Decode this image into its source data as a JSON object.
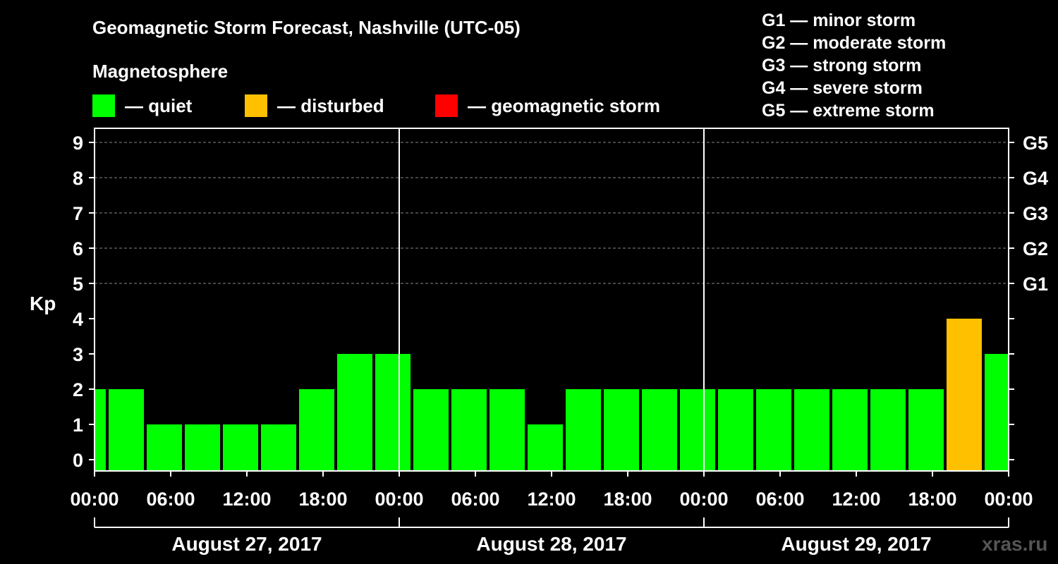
{
  "title": "Geomagnetic Storm Forecast, Nashville (UTC-05)",
  "section_label": "Magnetosphere",
  "legend": [
    {
      "label": "— quiet",
      "color": "#00ff00"
    },
    {
      "label": "— disturbed",
      "color": "#ffc000"
    },
    {
      "label": "— geomagnetic storm",
      "color": "#ff0000"
    }
  ],
  "g_scale": [
    "G1 — minor storm",
    "G2 — moderate storm",
    "G3 — strong storm",
    "G4 — severe storm",
    "G5 — extreme storm"
  ],
  "watermark": "xras.ru",
  "chart_data": {
    "type": "bar",
    "ylabel": "Kp",
    "ylim": [
      0,
      9
    ],
    "y_ticks": [
      "0",
      "1",
      "2",
      "3",
      "4",
      "5",
      "6",
      "7",
      "8",
      "9"
    ],
    "right_ticks": [
      {
        "kp": 5,
        "label": "G1"
      },
      {
        "kp": 6,
        "label": "G2"
      },
      {
        "kp": 7,
        "label": "G3"
      },
      {
        "kp": 8,
        "label": "G4"
      },
      {
        "kp": 9,
        "label": "G5"
      }
    ],
    "x_start": "2017-08-27 00:00",
    "x_end": "2017-08-30 00:00",
    "x_tick_labels": [
      "00:00",
      "06:00",
      "12:00",
      "18:00",
      "00:00",
      "06:00",
      "12:00",
      "18:00",
      "00:00",
      "06:00",
      "12:00",
      "18:00",
      "00:00"
    ],
    "days": [
      "August 27, 2017",
      "August 28, 2017",
      "August 29, 2017"
    ],
    "grid": "dashed horizontal at Kp 5–9",
    "bar_interval_hours": 3,
    "bars": [
      {
        "start": "2017-08-26 22:00",
        "kp": 2,
        "status": "quiet"
      },
      {
        "start": "2017-08-27 01:00",
        "kp": 2,
        "status": "quiet"
      },
      {
        "start": "2017-08-27 04:00",
        "kp": 1,
        "status": "quiet"
      },
      {
        "start": "2017-08-27 07:00",
        "kp": 1,
        "status": "quiet"
      },
      {
        "start": "2017-08-27 10:00",
        "kp": 1,
        "status": "quiet"
      },
      {
        "start": "2017-08-27 13:00",
        "kp": 1,
        "status": "quiet"
      },
      {
        "start": "2017-08-27 16:00",
        "kp": 2,
        "status": "quiet"
      },
      {
        "start": "2017-08-27 19:00",
        "kp": 3,
        "status": "quiet"
      },
      {
        "start": "2017-08-27 22:00",
        "kp": 3,
        "status": "quiet"
      },
      {
        "start": "2017-08-28 01:00",
        "kp": 2,
        "status": "quiet"
      },
      {
        "start": "2017-08-28 04:00",
        "kp": 2,
        "status": "quiet"
      },
      {
        "start": "2017-08-28 07:00",
        "kp": 2,
        "status": "quiet"
      },
      {
        "start": "2017-08-28 10:00",
        "kp": 1,
        "status": "quiet"
      },
      {
        "start": "2017-08-28 13:00",
        "kp": 2,
        "status": "quiet"
      },
      {
        "start": "2017-08-28 16:00",
        "kp": 2,
        "status": "quiet"
      },
      {
        "start": "2017-08-28 19:00",
        "kp": 2,
        "status": "quiet"
      },
      {
        "start": "2017-08-28 22:00",
        "kp": 2,
        "status": "quiet"
      },
      {
        "start": "2017-08-29 01:00",
        "kp": 2,
        "status": "quiet"
      },
      {
        "start": "2017-08-29 04:00",
        "kp": 2,
        "status": "quiet"
      },
      {
        "start": "2017-08-29 07:00",
        "kp": 2,
        "status": "quiet"
      },
      {
        "start": "2017-08-29 10:00",
        "kp": 2,
        "status": "quiet"
      },
      {
        "start": "2017-08-29 13:00",
        "kp": 2,
        "status": "quiet"
      },
      {
        "start": "2017-08-29 16:00",
        "kp": 2,
        "status": "quiet"
      },
      {
        "start": "2017-08-29 19:00",
        "kp": 4,
        "status": "disturbed"
      },
      {
        "start": "2017-08-29 22:00",
        "kp": 3,
        "status": "quiet"
      }
    ],
    "status_colors": {
      "quiet": "#00ff00",
      "disturbed": "#ffc000",
      "storm": "#ff0000"
    }
  }
}
